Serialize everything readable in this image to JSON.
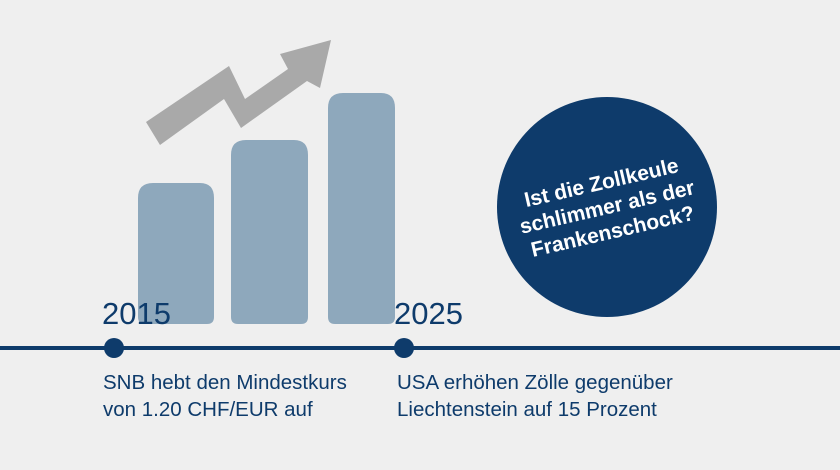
{
  "timeline": {
    "events": [
      {
        "year": "2015",
        "lines": [
          "SNB hebt den Mindestkurs",
          "von 1.20 CHF/EUR auf"
        ]
      },
      {
        "year": "2025",
        "lines": [
          "USA erhöhen Zölle gegenüber",
          "Liechtenstein auf 15 Prozent"
        ]
      }
    ]
  },
  "badge": {
    "lines": [
      "Ist die Zollkeule",
      "schlimmer als der",
      "Frankenschock?"
    ]
  },
  "colors": {
    "background": "#efefef",
    "navy": "#0e3b6b",
    "bars": "#8ea8bc",
    "arrow": "#a9a9a9"
  },
  "icons": [
    "rising-arrow-icon",
    "bar-chart-icon"
  ]
}
